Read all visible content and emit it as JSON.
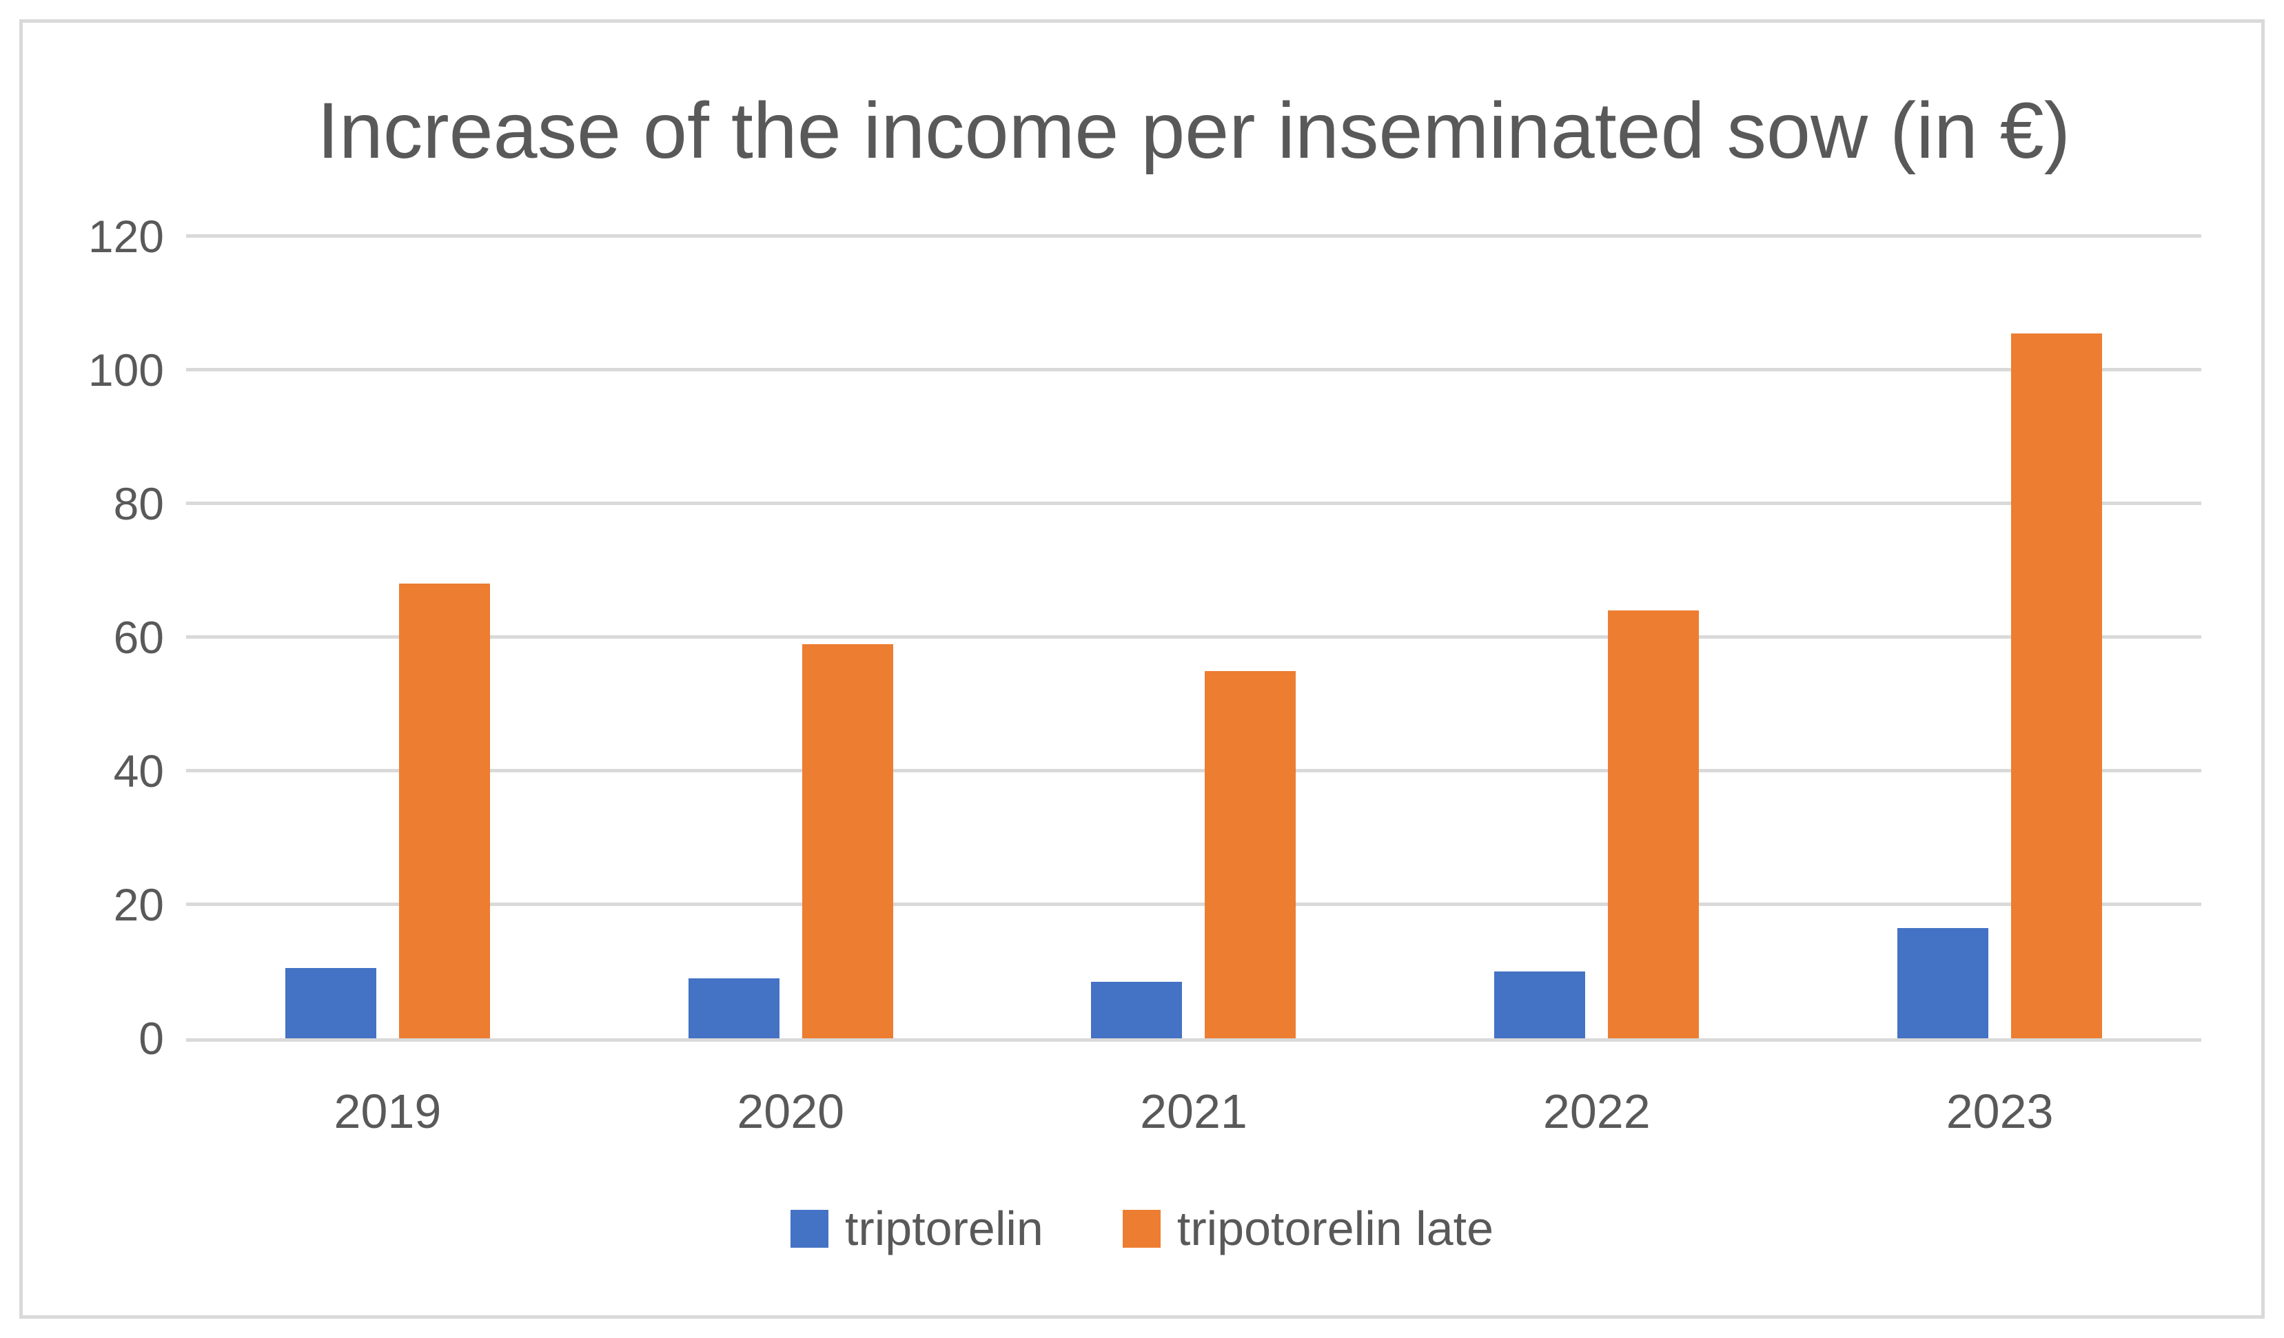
{
  "chart_data": {
    "type": "bar",
    "title": "Increase of the income per inseminated sow (in €)",
    "categories": [
      "2019",
      "2020",
      "2021",
      "2022",
      "2023"
    ],
    "series": [
      {
        "name": "triptorelin",
        "color": "#4472C4",
        "values": [
          10.5,
          9,
          8.5,
          10,
          16.5
        ]
      },
      {
        "name": "tripotorelin late",
        "color": "#ED7D31",
        "values": [
          68,
          59,
          55,
          64,
          105.5
        ]
      }
    ],
    "xlabel": "",
    "ylabel": "",
    "ylim": [
      0,
      120
    ],
    "yticks": [
      0,
      20,
      40,
      60,
      80,
      100,
      120
    ],
    "grid": true,
    "legend_position": "bottom"
  },
  "colors": {
    "background": "#FFFFFF",
    "frame_border": "#D9D9D9",
    "gridline": "#D9D9D9",
    "axis_text": "#595959",
    "title_text": "#595959"
  }
}
